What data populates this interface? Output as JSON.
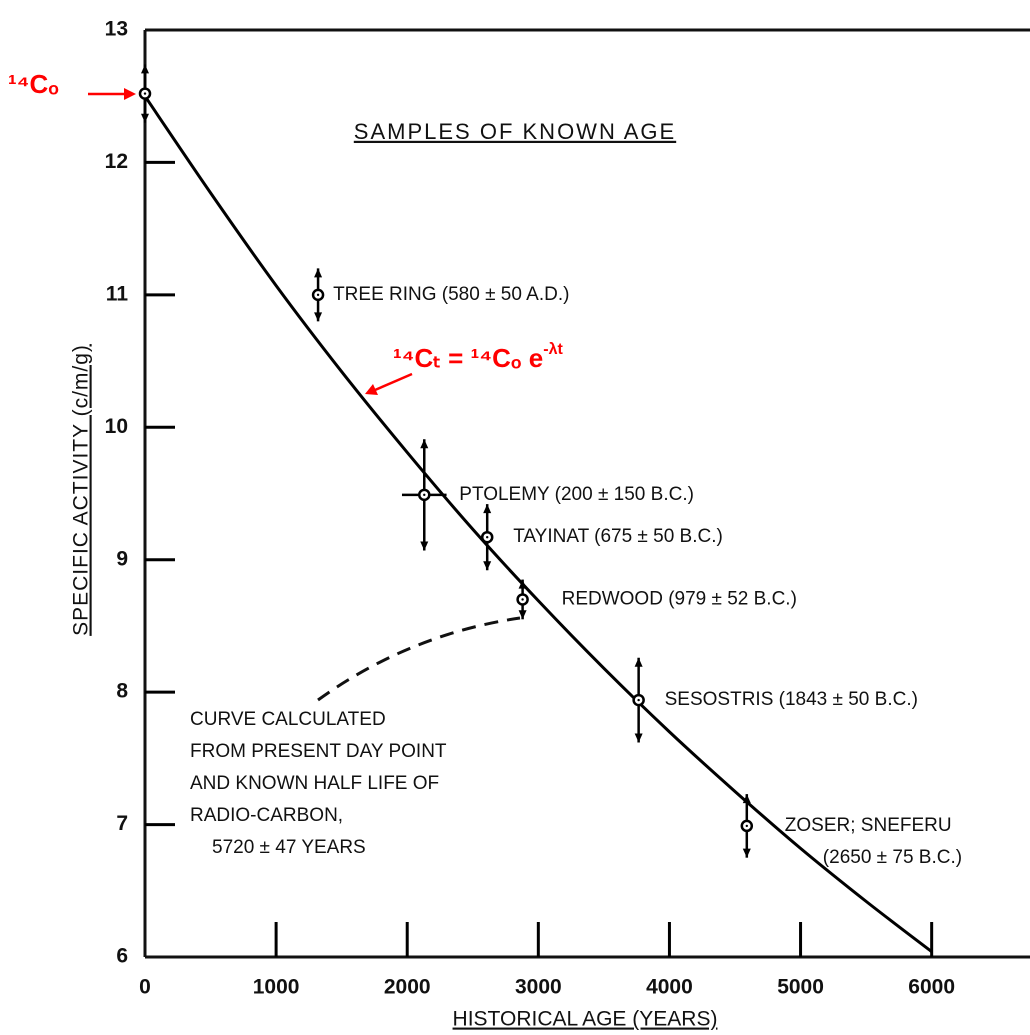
{
  "chart_data": {
    "type": "scatter",
    "title": "SAMPLES OF KNOWN AGE",
    "x_label": "HISTORICAL AGE (YEARS)",
    "y_label": "SPECIFIC ACTIVITY (c/m/g)",
    "xlim": [
      0,
      6750
    ],
    "ylim": [
      6,
      13
    ],
    "xticks": [
      0,
      1000,
      2000,
      3000,
      4000,
      5000,
      6000
    ],
    "yticks": [
      6,
      7,
      8,
      9,
      10,
      11,
      12,
      13
    ],
    "color": "#000000",
    "points": {
      "x": [
        0,
        1320,
        2130,
        2610,
        2880,
        3765,
        4590
      ],
      "values": [
        12.52,
        11.0,
        9.49,
        9.17,
        8.7,
        7.94,
        6.99
      ],
      "errors": [
        0.22,
        0.2,
        0.42,
        0.25,
        0.15,
        0.32,
        0.24
      ],
      "x_errors": [
        null,
        null,
        170,
        null,
        null,
        null,
        null
      ],
      "labels": [
        null,
        [
          "TREE RING (580 ± 50 A.D.)"
        ],
        [
          "PTOLEMY (200 ± 150 B.C.)"
        ],
        [
          "TAYINAT (675 ± 50 B.C.)"
        ],
        [
          "REDWOOD (979 ± 52 B.C.)"
        ],
        [
          "SESOSTRIS (1843 ± 50 B.C.)"
        ],
        [
          "ZOSER; SNEFERU",
          "(2650 ± 75 B.C.)"
        ]
      ]
    },
    "curve": {
      "x": [
        0,
        500,
        1000,
        1500,
        2000,
        2500,
        3000,
        3500,
        4000,
        4500,
        5000,
        5500,
        6000
      ],
      "values": [
        12.5,
        11.77,
        11.07,
        10.42,
        9.81,
        9.23,
        8.69,
        8.18,
        7.7,
        7.25,
        6.82,
        6.42,
        6.04
      ]
    },
    "annotation": [
      "CURVE CALCULATED",
      "FROM PRESENT DAY POINT",
      "AND KNOWN HALF LIFE OF",
      "RADIO-CARBON,",
      "5720 ± 47 YEARS"
    ],
    "c0_label": "¹⁴Cₒ",
    "formula": {
      "base": "¹⁴Cₜ = ¹⁴Cₒ e",
      "exponent": "-λt"
    },
    "highlight_color": "#ff0000"
  }
}
